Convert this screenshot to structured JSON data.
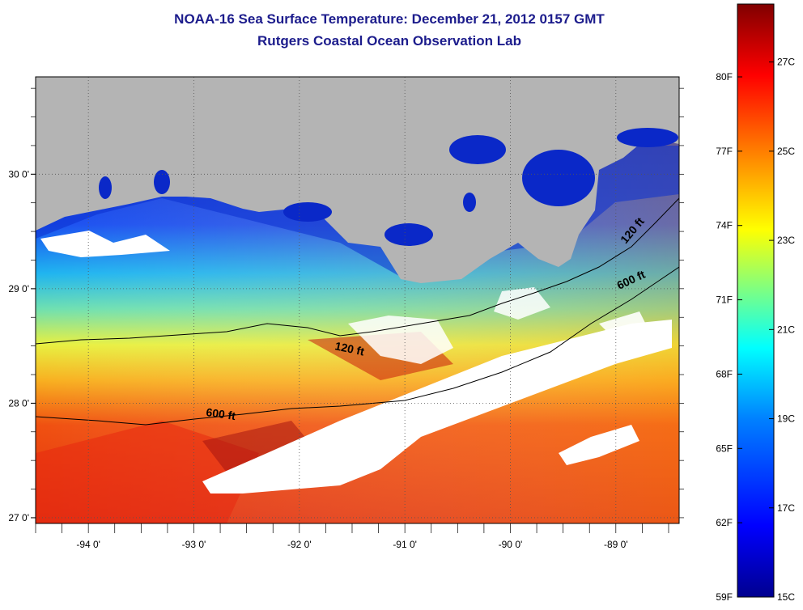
{
  "title": "NOAA-16 Sea Surface Temperature:  December 21, 2012 0157 GMT",
  "subtitle": "Rutgers Coastal Ocean Observation Lab",
  "map": {
    "lat_ticks": [
      "30 0'",
      "29 0'",
      "28 0'",
      "27 0'"
    ],
    "lat_values": [
      30,
      29,
      28,
      27
    ],
    "lon_ticks": [
      "-94 0'",
      "-93 0'",
      "-92 0'",
      "-91 0'",
      "-90 0'",
      "-89 0'"
    ],
    "lon_values": [
      -94,
      -93,
      -92,
      -91,
      -90,
      -89
    ],
    "lon_range": [
      -94.5,
      -88.4
    ],
    "lat_range": [
      26.95,
      30.85
    ],
    "contours": [
      {
        "label": "120 ft"
      },
      {
        "label": "600 ft"
      },
      {
        "label": "120 ft"
      },
      {
        "label": "600 ft"
      }
    ],
    "colors": {
      "land": "#b4b4b4",
      "cloud": "#ffffff",
      "grid": "#555555"
    }
  },
  "colorbar": {
    "fahrenheit_labels": [
      "80F",
      "77F",
      "74F",
      "71F",
      "68F",
      "65F",
      "62F",
      "59F"
    ],
    "celsius_labels": [
      "27C",
      "25C",
      "23C",
      "21C",
      "19C",
      "17C",
      "15C"
    ],
    "fahrenheit_values": [
      80,
      77,
      74,
      71,
      68,
      65,
      62,
      59
    ],
    "celsius_values": [
      27,
      25,
      23,
      21,
      19,
      17,
      15
    ],
    "range_c": [
      15,
      28.3
    ],
    "colormap": [
      "#00008f",
      "#0000ff",
      "#0080ff",
      "#00ffff",
      "#80ff80",
      "#ffff00",
      "#ff8000",
      "#ff0000",
      "#800000"
    ]
  }
}
